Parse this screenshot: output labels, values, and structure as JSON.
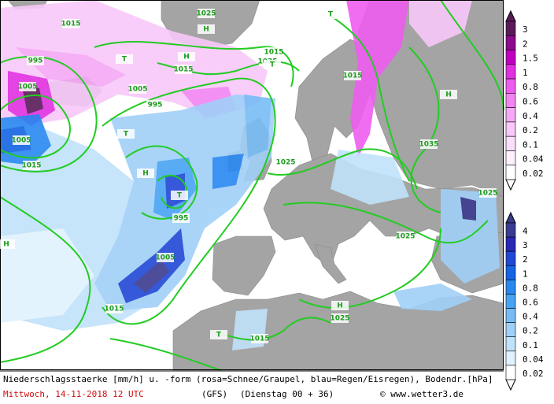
{
  "footer": {
    "description": "Niederschlagsstaerke [mm/h] u. -form (rosa=Schnee/Graupel, blau=Regen/Eisregen), Bodendr.[hPa]",
    "date": "Mittwoch, 14-11-2018  12 UTC",
    "model": "(GFS)",
    "run": "(Dienstag 00 + 36)",
    "credit": "© www.wetter3.de"
  },
  "legend_snow": {
    "items": [
      {
        "label": "3",
        "color": "#5a1a5a"
      },
      {
        "label": "2",
        "color": "#8c0a8c"
      },
      {
        "label": "1.5",
        "color": "#c000c0"
      },
      {
        "label": "1",
        "color": "#e030e0"
      },
      {
        "label": "0.8",
        "color": "#ee5cee"
      },
      {
        "label": "0.6",
        "color": "#f284f2"
      },
      {
        "label": "0.4",
        "color": "#f6a8f6"
      },
      {
        "label": "0.2",
        "color": "#f9c8f9"
      },
      {
        "label": "0.1",
        "color": "#fbdefb"
      },
      {
        "label": "0.04",
        "color": "#fdf0fd"
      },
      {
        "label": "0.02",
        "color": "#ffffff"
      }
    ]
  },
  "legend_rain": {
    "items": [
      {
        "label": "4",
        "color": "#3a3a90"
      },
      {
        "label": "3",
        "color": "#2828b4"
      },
      {
        "label": "2",
        "color": "#2048d4"
      },
      {
        "label": "1",
        "color": "#1464e4"
      },
      {
        "label": "0.8",
        "color": "#2888f0"
      },
      {
        "label": "0.6",
        "color": "#48a4f2"
      },
      {
        "label": "0.4",
        "color": "#78bcf6"
      },
      {
        "label": "0.2",
        "color": "#a0d0f8"
      },
      {
        "label": "0.1",
        "color": "#c0e2fa"
      },
      {
        "label": "0.04",
        "color": "#e0f2fd"
      },
      {
        "label": "0.02",
        "color": "#ffffff"
      }
    ]
  },
  "map": {
    "labels": [
      "1005",
      "1015",
      "995",
      "1005",
      "1015",
      "1005",
      "995",
      "1005",
      "995",
      "1015",
      "1025",
      "1015",
      "1025",
      "1035",
      "1025",
      "1015",
      "1025",
      "1035",
      "1015",
      "1015",
      "1025",
      "H",
      "H",
      "H",
      "H",
      "H",
      "H",
      "T",
      "T",
      "T",
      "T",
      "T",
      "T"
    ]
  }
}
